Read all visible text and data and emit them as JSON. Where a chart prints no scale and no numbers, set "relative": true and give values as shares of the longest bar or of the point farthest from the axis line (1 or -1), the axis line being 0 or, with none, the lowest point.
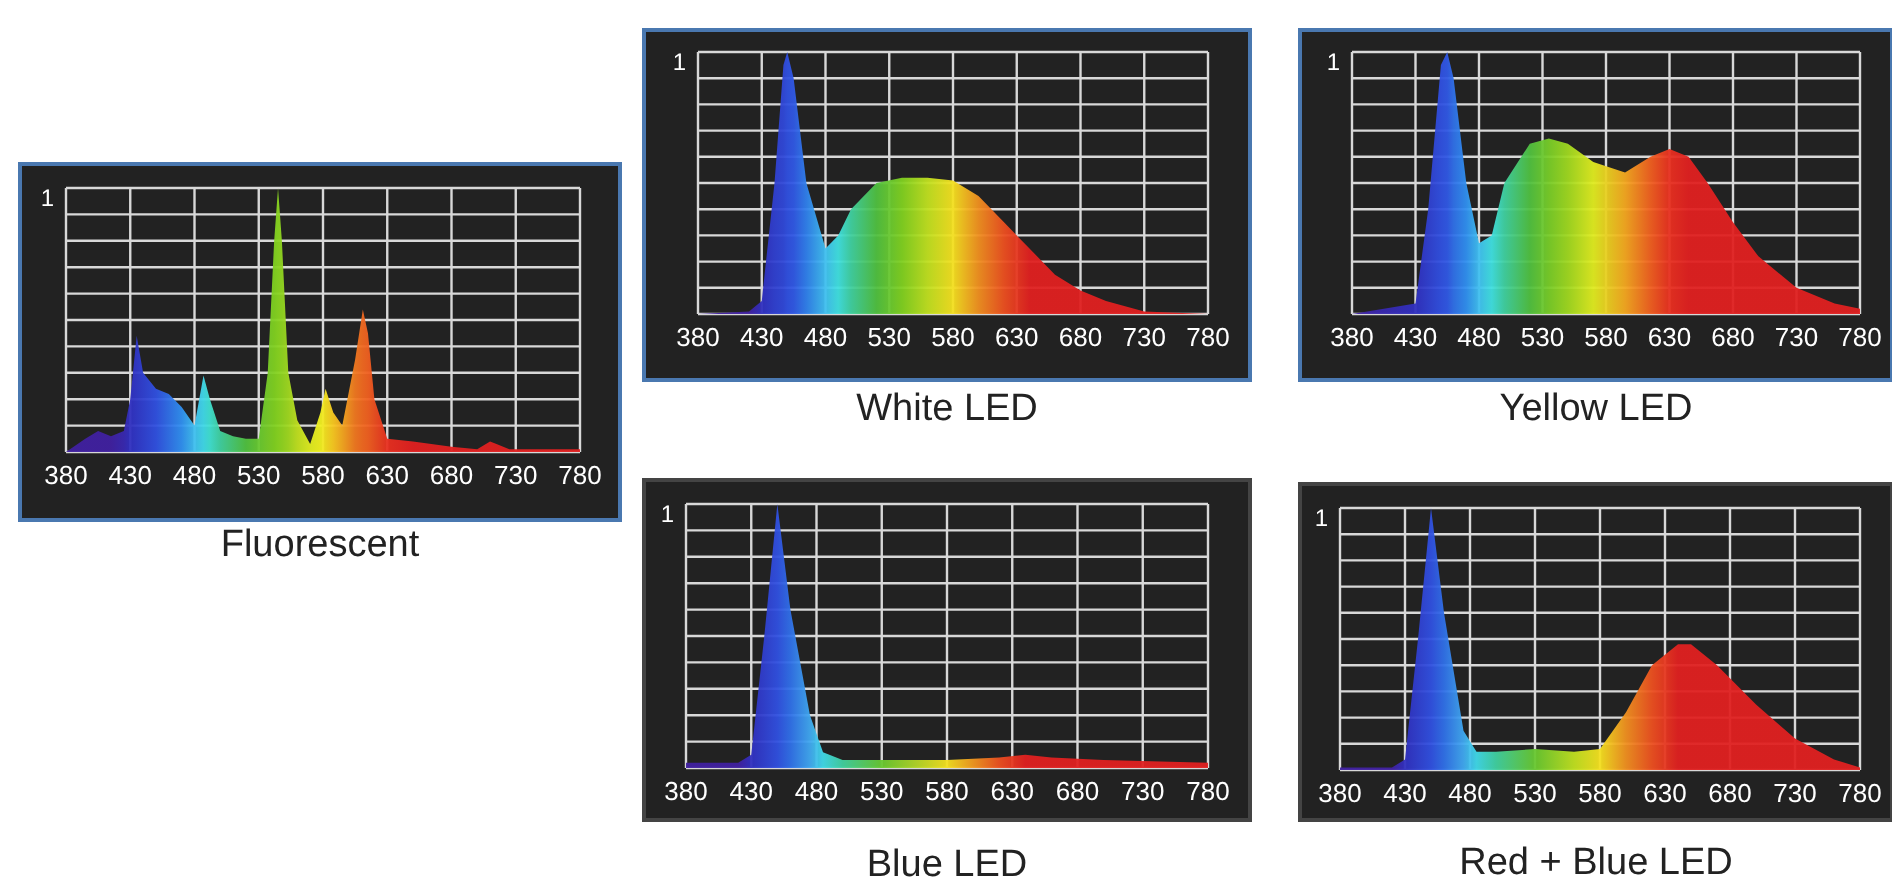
{
  "chart_data": [
    {
      "type": "area",
      "title": "Fluorescent",
      "relative": true,
      "grid": true,
      "annotations": [
        "1"
      ],
      "xlim": [
        380,
        780
      ],
      "xticks": [
        380,
        430,
        480,
        530,
        580,
        630,
        680,
        730,
        780
      ],
      "x": [
        380,
        395,
        405,
        415,
        425,
        430,
        435,
        440,
        450,
        460,
        470,
        480,
        487,
        492,
        500,
        510,
        520,
        530,
        537,
        542,
        545,
        548,
        553,
        560,
        570,
        578,
        582,
        588,
        595,
        605,
        611,
        615,
        620,
        630,
        650,
        680,
        700,
        710,
        715,
        725,
        780
      ],
      "series": [
        {
          "values": [
            0,
            0.05,
            0.08,
            0.06,
            0.08,
            0.2,
            0.44,
            0.3,
            0.24,
            0.22,
            0.17,
            0.1,
            0.29,
            0.2,
            0.08,
            0.06,
            0.05,
            0.05,
            0.3,
            0.8,
            1,
            0.8,
            0.3,
            0.12,
            0.03,
            0.15,
            0.24,
            0.15,
            0.1,
            0.35,
            0.54,
            0.45,
            0.2,
            0.05,
            0.04,
            0.02,
            0.01,
            0.04,
            0.03,
            0.01,
            0.01
          ],
          "colors": [
            "#4020a0",
            "#4020a0",
            "#4020a0",
            "#4020a0",
            "#3828b0",
            "#3030c0",
            "#3038c8",
            "#3040d0",
            "#3050e0",
            "#3070e8",
            "#3090f0",
            "#40c0f0",
            "#40d8e8",
            "#40e0d0",
            "#40d0a0",
            "#48c870",
            "#50c040",
            "#68c830",
            "#78cc28",
            "#80d020",
            "#88d420",
            "#90d420",
            "#a0d820",
            "#c0e020",
            "#e0ec20",
            "#f0f020",
            "#f4e020",
            "#f8c820",
            "#f4a820",
            "#f07820",
            "#f06820",
            "#f06020",
            "#ec5020",
            "#e83020",
            "#e02020",
            "#e02020",
            "#e02020",
            "#e02020",
            "#e02020",
            "#e02020",
            "#e02020"
          ]
        }
      ]
    },
    {
      "type": "area",
      "title": "White LED",
      "relative": true,
      "grid": true,
      "annotations": [
        "1"
      ],
      "xlim": [
        380,
        780
      ],
      "xticks": [
        380,
        430,
        480,
        530,
        580,
        630,
        680,
        730,
        780
      ],
      "x": [
        380,
        420,
        430,
        440,
        447,
        450,
        455,
        465,
        480,
        490,
        500,
        520,
        540,
        560,
        580,
        600,
        620,
        640,
        660,
        680,
        700,
        730,
        780
      ],
      "series": [
        {
          "values": [
            0,
            0.01,
            0.05,
            0.5,
            0.95,
            1,
            0.9,
            0.5,
            0.25,
            0.3,
            0.4,
            0.5,
            0.52,
            0.52,
            0.51,
            0.45,
            0.35,
            0.25,
            0.15,
            0.09,
            0.05,
            0.01,
            0
          ],
          "colors": [
            "#4020a0",
            "#4020a0",
            "#3030c0",
            "#3040d0",
            "#3048d8",
            "#3050e0",
            "#3058e4",
            "#3080ec",
            "#40c0f0",
            "#40e0e0",
            "#40d0a0",
            "#50c040",
            "#80d020",
            "#c0e020",
            "#f4e020",
            "#f09020",
            "#ec5020",
            "#e02020",
            "#e02020",
            "#e02020",
            "#e02020",
            "#e02020",
            "#e02020"
          ]
        }
      ]
    },
    {
      "type": "area",
      "title": "Yellow LED",
      "relative": true,
      "grid": true,
      "annotations": [
        "1"
      ],
      "xlim": [
        380,
        780
      ],
      "xticks": [
        380,
        430,
        480,
        530,
        580,
        630,
        680,
        730,
        780
      ],
      "x": [
        380,
        430,
        440,
        450,
        455,
        460,
        470,
        480,
        490,
        500,
        520,
        535,
        550,
        570,
        595,
        615,
        630,
        645,
        660,
        680,
        700,
        730,
        760,
        780
      ],
      "series": [
        {
          "values": [
            0,
            0.04,
            0.4,
            0.95,
            1,
            0.9,
            0.5,
            0.27,
            0.3,
            0.5,
            0.65,
            0.67,
            0.65,
            0.58,
            0.54,
            0.6,
            0.63,
            0.6,
            0.5,
            0.35,
            0.22,
            0.1,
            0.04,
            0.02
          ],
          "colors": [
            "#4020a0",
            "#3030c0",
            "#3040d0",
            "#3050e0",
            "#3058e4",
            "#3070e8",
            "#3090f0",
            "#40c0f0",
            "#40e0e0",
            "#40d0a0",
            "#50c040",
            "#78cc28",
            "#a0d820",
            "#e0ec20",
            "#f4a820",
            "#f06020",
            "#e83020",
            "#e02020",
            "#e02020",
            "#e02020",
            "#e02020",
            "#e02020",
            "#e02020",
            "#e02020"
          ]
        }
      ]
    },
    {
      "type": "area",
      "title": "Blue LED",
      "relative": true,
      "grid": true,
      "annotations": [
        "1"
      ],
      "xlim": [
        380,
        780
      ],
      "xticks": [
        380,
        430,
        480,
        530,
        580,
        630,
        680,
        730,
        780
      ],
      "x": [
        380,
        420,
        430,
        440,
        450,
        460,
        475,
        485,
        500,
        530,
        580,
        620,
        640,
        660,
        700,
        780
      ],
      "series": [
        {
          "values": [
            0.02,
            0.02,
            0.05,
            0.5,
            1,
            0.6,
            0.2,
            0.06,
            0.03,
            0.03,
            0.03,
            0.04,
            0.05,
            0.04,
            0.03,
            0.02
          ],
          "colors": [
            "#4020a0",
            "#4020a0",
            "#3030c0",
            "#3040d0",
            "#3050e0",
            "#3070e8",
            "#40a8f0",
            "#40d8e8",
            "#40d0a0",
            "#68c830",
            "#f4e020",
            "#ec5020",
            "#e02020",
            "#e02020",
            "#e02020",
            "#e02020"
          ]
        }
      ]
    },
    {
      "type": "area",
      "title": "Red + Blue LED",
      "relative": true,
      "grid": true,
      "annotations": [
        "1"
      ],
      "xlim": [
        380,
        780
      ],
      "xticks": [
        380,
        430,
        480,
        530,
        580,
        630,
        680,
        730,
        780
      ],
      "x": [
        380,
        420,
        430,
        440,
        450,
        460,
        475,
        485,
        500,
        530,
        560,
        580,
        600,
        620,
        640,
        650,
        670,
        700,
        730,
        760,
        780
      ],
      "series": [
        {
          "values": [
            0.01,
            0.01,
            0.04,
            0.5,
            1,
            0.6,
            0.15,
            0.07,
            0.07,
            0.08,
            0.07,
            0.08,
            0.22,
            0.4,
            0.48,
            0.48,
            0.4,
            0.25,
            0.12,
            0.04,
            0.01
          ],
          "colors": [
            "#4020a0",
            "#4020a0",
            "#3030c0",
            "#3040d0",
            "#3050e0",
            "#3070e8",
            "#40a8f0",
            "#40d8e8",
            "#40d0a0",
            "#68c830",
            "#c0e020",
            "#f4e020",
            "#f09020",
            "#ec5020",
            "#e02020",
            "#e02020",
            "#e02020",
            "#e02020",
            "#e02020",
            "#e02020",
            "#e02020"
          ]
        }
      ]
    }
  ]
}
